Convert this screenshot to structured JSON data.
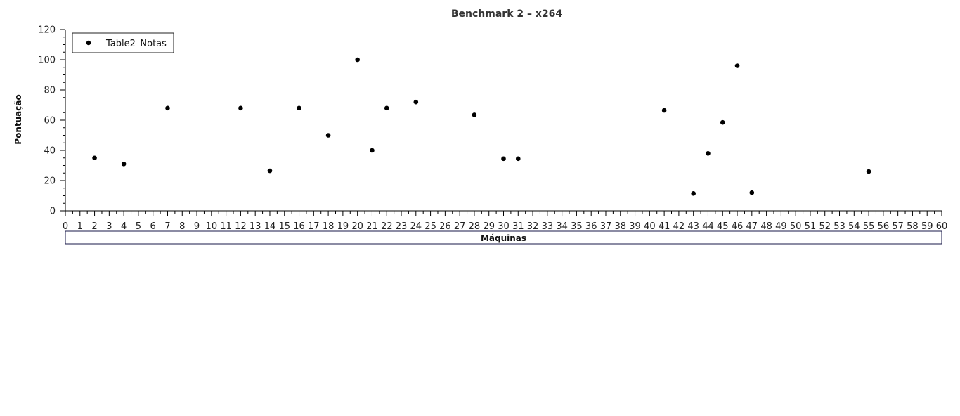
{
  "chart_data": {
    "type": "scatter",
    "title": "Benchmark 2 – x264",
    "xlabel": "Máquinas",
    "ylabel": "Pontuação",
    "xlim": [
      0,
      60
    ],
    "ylim": [
      0,
      120
    ],
    "x_major_step": 1,
    "y_major_step": 20,
    "y_minor_step": 5,
    "grid": false,
    "legend": {
      "position": "top-left"
    },
    "series": [
      {
        "name": "Table2_Notas",
        "color": "#000000",
        "x": [
          2,
          4,
          7,
          12,
          14,
          16,
          18,
          20,
          21,
          22,
          24,
          28,
          30,
          31,
          41,
          43,
          44,
          45,
          46,
          47,
          55
        ],
        "y": [
          35,
          31,
          68,
          68,
          26.5,
          68,
          50,
          100,
          40,
          68,
          72,
          63.5,
          34.5,
          34.5,
          66.5,
          11.5,
          38,
          58.5,
          96,
          12,
          26
        ]
      }
    ]
  }
}
